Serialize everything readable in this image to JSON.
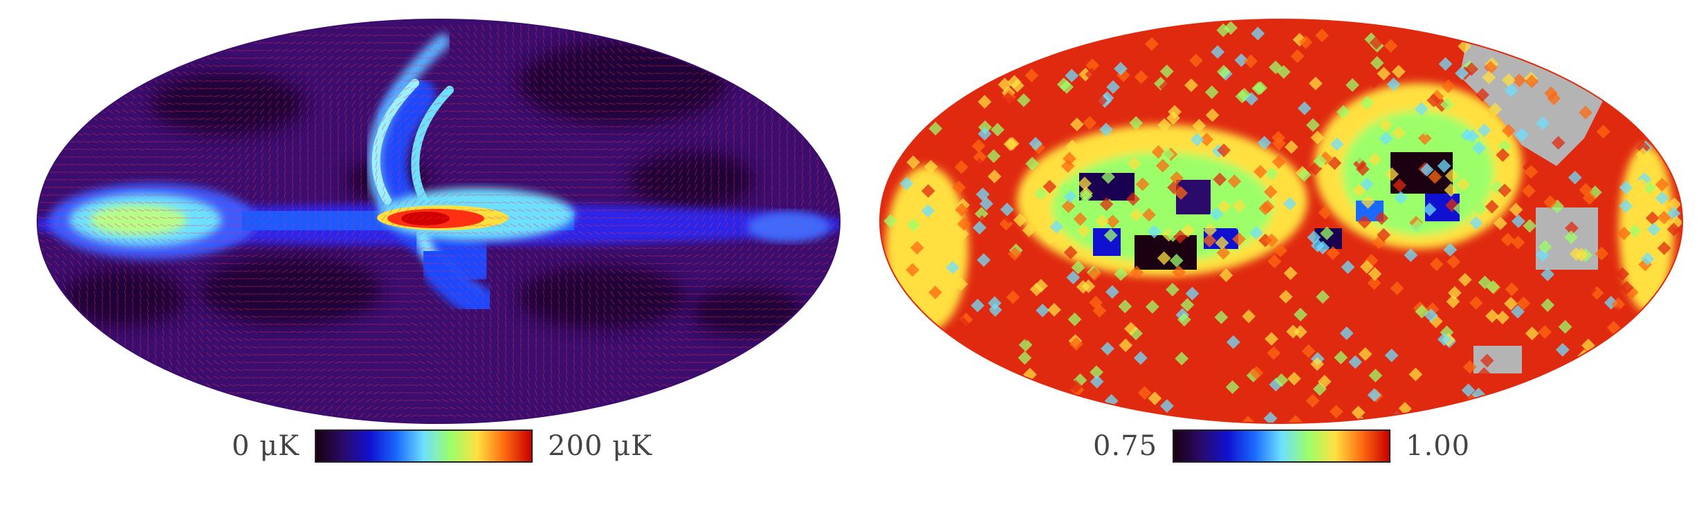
{
  "panels": [
    {
      "name": "polarized-intensity-map",
      "colormap": "jet-dark",
      "background_color": "#3a0d6e",
      "min_label": "0 μK",
      "max_label": "200 μK",
      "has_polarization_vectors": true
    },
    {
      "name": "polarization-fraction-map",
      "colormap": "jet-dark",
      "background_color": "#e02a10",
      "mask_color": "#b4b4b4",
      "min_label": "0.75",
      "max_label": "1.00",
      "has_polarization_vectors": false
    }
  ],
  "colorbar_stops": [
    "#1a0010",
    "#2a0a6a",
    "#1010d0",
    "#1a6aff",
    "#6ee0ff",
    "#9cff6a",
    "#ffe040",
    "#ff6a10",
    "#c80000"
  ]
}
